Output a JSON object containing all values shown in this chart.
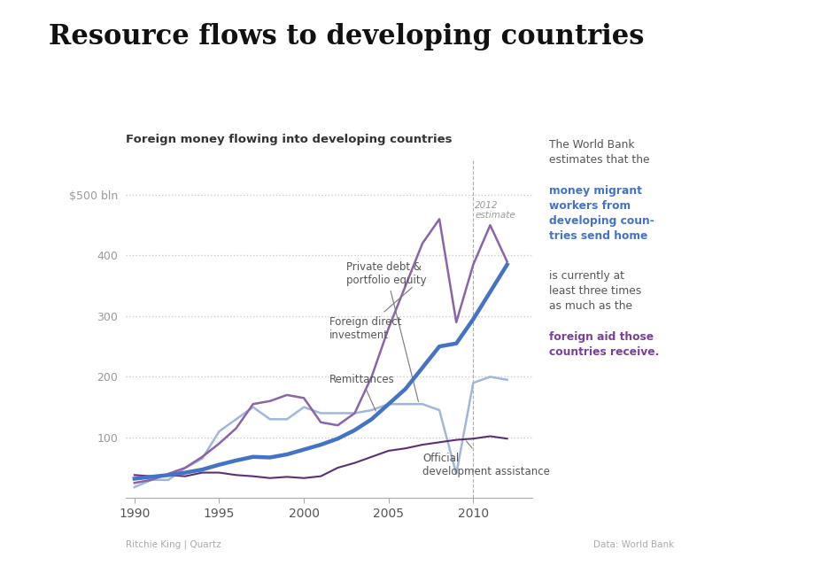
{
  "title": "Resource flows to developing countries",
  "subtitle": "Foreign money flowing into developing countries",
  "title_fontsize": 22,
  "bg_color": "#ffffff",
  "grid_color": "#cccccc",
  "years": [
    1990,
    1991,
    1992,
    1993,
    1994,
    1995,
    1996,
    1997,
    1998,
    1999,
    2000,
    2001,
    2002,
    2003,
    2004,
    2005,
    2006,
    2007,
    2008,
    2009,
    2010,
    2011,
    2012
  ],
  "remittances": [
    32,
    35,
    38,
    42,
    47,
    55,
    62,
    68,
    67,
    72,
    80,
    88,
    98,
    112,
    130,
    155,
    180,
    215,
    250,
    255,
    295,
    340,
    385
  ],
  "foreign_direct_investment": [
    25,
    30,
    40,
    50,
    68,
    90,
    115,
    155,
    160,
    170,
    165,
    125,
    120,
    140,
    200,
    280,
    350,
    420,
    460,
    290,
    385,
    450,
    390
  ],
  "private_debt_portfolio": [
    18,
    30,
    30,
    50,
    65,
    110,
    130,
    150,
    130,
    130,
    150,
    140,
    140,
    140,
    145,
    155,
    155,
    155,
    145,
    40,
    190,
    200,
    195
  ],
  "official_dev_assistance": [
    38,
    36,
    38,
    36,
    42,
    42,
    38,
    36,
    33,
    35,
    33,
    36,
    50,
    58,
    68,
    78,
    82,
    88,
    92,
    96,
    98,
    102,
    98
  ],
  "remittances_color": "#4472c4",
  "fdi_color": "#8b63a8",
  "private_debt_color": "#a0b8d8",
  "oda_color": "#5c3070",
  "blue_text_color": "#4472c4",
  "purple_text_color": "#7b3f99",
  "ylim": [
    0,
    560
  ],
  "yticks": [
    100,
    200,
    300,
    400,
    500
  ],
  "ytick_labels": [
    "100",
    "200",
    "300",
    "400",
    "$500 bln"
  ],
  "xlim": [
    1989.5,
    2013.5
  ],
  "xticks": [
    1990,
    1995,
    2000,
    2005,
    2010
  ],
  "credit_left": "Ritchie King | Quartz",
  "credit_right": "Data: World Bank"
}
